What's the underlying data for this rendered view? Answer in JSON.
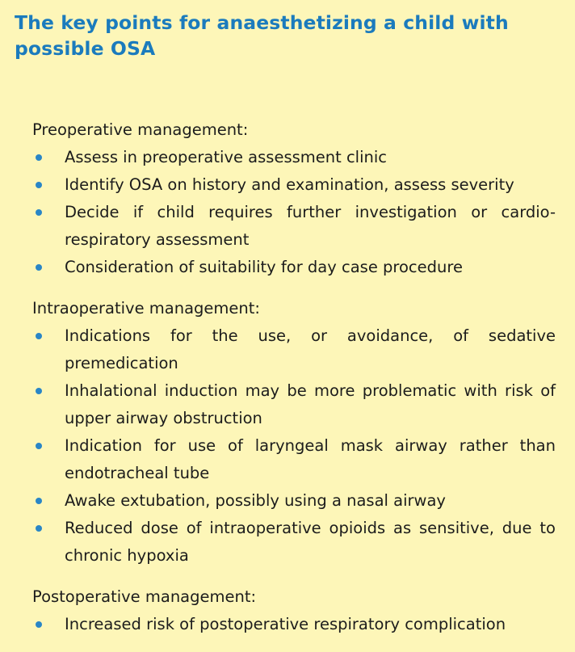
{
  "title": "The key points for anaesthetizing a child with possible OSA",
  "sections": [
    {
      "heading": "Preoperative management:",
      "items": [
        "Assess in preoperative assessment clinic",
        "Identify OSA on history and examination, assess severity",
        "Decide if child requires further investigation or cardio-respiratory assessment",
        "Consideration of suitability for day case procedure"
      ]
    },
    {
      "heading": "Intraoperative management:",
      "items": [
        "Indications for the use, or avoidance, of sedative premedication",
        "Inhalational induction may be more problematic with risk of upper airway obstruction",
        "Indication for use of laryngeal mask airway rather than endotracheal tube",
        "Awake extubation, possibly using a nasal airway",
        "Reduced dose of intraoperative opioids as sensitive, due to chronic hypoxia"
      ]
    },
    {
      "heading": "Postoperative management:",
      "items": [
        "Increased risk of postoperative respiratory complication"
      ]
    }
  ],
  "colors": {
    "background": "#fdf6b8",
    "title": "#1b7bbd",
    "bullet": "#2a86c6",
    "text": "#1c1c1c"
  }
}
